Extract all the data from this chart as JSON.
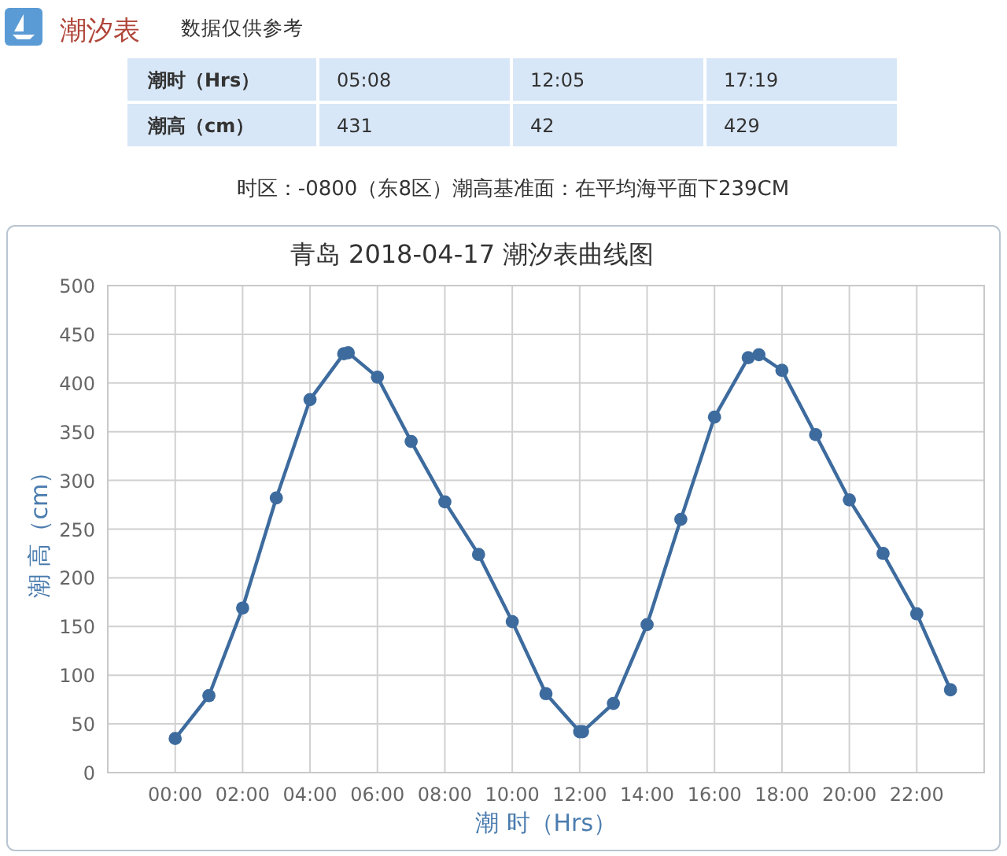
{
  "chart_data": [
    {
      "type": "other",
      "title": "潮汐表",
      "subtitle": "数据仅供参考",
      "xlabel": "潮时（Hrs）",
      "ylabel": "潮高（cm）",
      "categories": [
        "05:08",
        "12:05",
        "17:19"
      ],
      "values": [
        431,
        42,
        429
      ],
      "data_labels": true,
      "annotations": [
        "时区：-0800（东8区）潮高基准面：在平均海平面下239CM"
      ]
    },
    {
      "type": "line",
      "title": "青岛 2018-04-17 潮汐表曲线图",
      "xlabel": "潮 时（Hrs）",
      "ylabel": "潮 高（cm）",
      "x": [
        0,
        1,
        2,
        3,
        4,
        5,
        5.1333,
        6,
        7,
        8,
        9,
        10,
        11,
        12,
        12.0833,
        13,
        14,
        15,
        16,
        17,
        17.3167,
        18,
        19,
        20,
        21,
        22,
        23
      ],
      "values": [
        35,
        79,
        169,
        282,
        383,
        430,
        431,
        406,
        340,
        278,
        224,
        155,
        81,
        42,
        42,
        71,
        152,
        260,
        365,
        426,
        429,
        413,
        347,
        280,
        225,
        163,
        85
      ],
      "color": "#3d6b9e",
      "xlim": [
        -2,
        24
      ],
      "ylim": [
        0,
        500
      ],
      "xticks": [
        {
          "value": 0,
          "label": "00:00"
        },
        {
          "value": 2,
          "label": "02:00"
        },
        {
          "value": 4,
          "label": "04:00"
        },
        {
          "value": 6,
          "label": "06:00"
        },
        {
          "value": 8,
          "label": "08:00"
        },
        {
          "value": 10,
          "label": "10:00"
        },
        {
          "value": 12,
          "label": "12:00"
        },
        {
          "value": 14,
          "label": "14:00"
        },
        {
          "value": 16,
          "label": "16:00"
        },
        {
          "value": 18,
          "label": "18:00"
        },
        {
          "value": 20,
          "label": "20:00"
        },
        {
          "value": 22,
          "label": "22:00"
        }
      ],
      "yticks": [
        0,
        50,
        100,
        150,
        200,
        250,
        300,
        350,
        400,
        450,
        500
      ],
      "grid": true,
      "marker": "circle",
      "line_style": "solid"
    }
  ]
}
